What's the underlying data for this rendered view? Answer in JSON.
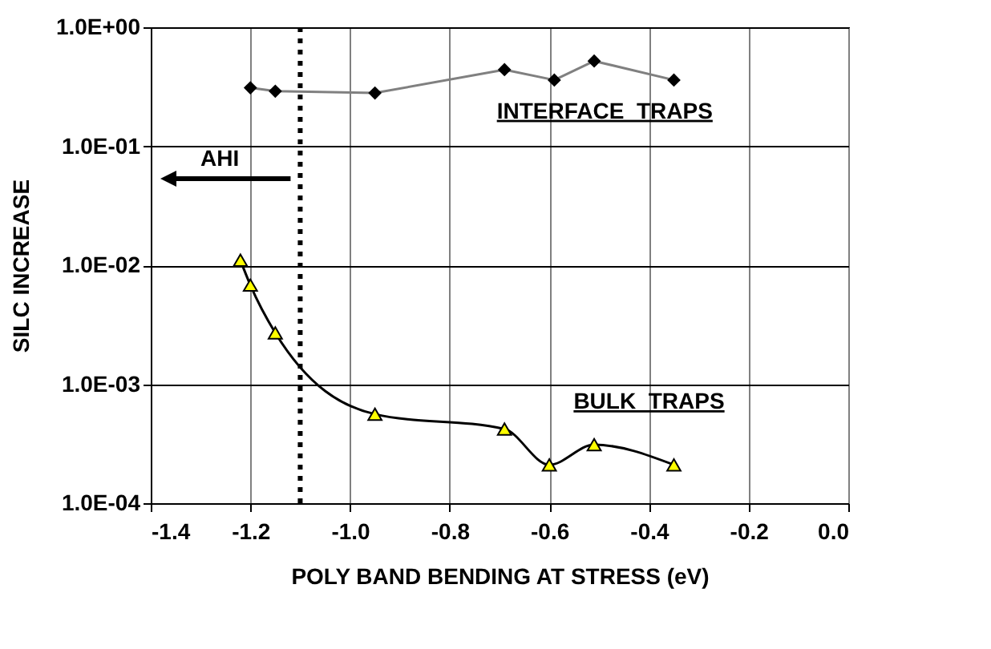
{
  "chart_data": {
    "type": "line",
    "xlabel": "POLY BAND BENDING AT STRESS    (eV)",
    "ylabel": "SILC INCREASE",
    "log": "y",
    "grid": true,
    "xlim": [
      -1.4,
      0.0
    ],
    "xticks": [
      {
        "value": -1.4,
        "label": "-1.4"
      },
      {
        "value": -1.2,
        "label": "-1.2"
      },
      {
        "value": -1.0,
        "label": "-1.0"
      },
      {
        "value": -0.8,
        "label": "-0.8"
      },
      {
        "value": -0.6,
        "label": "-0.6"
      },
      {
        "value": -0.4,
        "label": "-0.4"
      },
      {
        "value": -0.2,
        "label": "-0.2"
      },
      {
        "value": 0.0,
        "label": "0.0"
      }
    ],
    "ylim": [
      0.0001,
      1
    ],
    "yticks": [
      {
        "value": 0.0001,
        "label": "1.0E-04"
      },
      {
        "value": 0.001,
        "label": "1.0E-03"
      },
      {
        "value": 0.01,
        "label": "1.0E-02"
      },
      {
        "value": 0.1,
        "label": "1.0E-01"
      },
      {
        "value": 1,
        "label": "1.0E+00"
      }
    ],
    "series": [
      {
        "color": "#000000",
        "marker": "diamond",
        "x": [
          -1.2,
          -1.15,
          -0.95,
          -0.69,
          -0.59,
          -0.51,
          -0.35
        ],
        "values": [
          0.31,
          0.29,
          0.28,
          0.44,
          0.36,
          0.52,
          0.36
        ]
      },
      {
        "color": "#ffff00",
        "marker": "triangle",
        "x": [
          -1.22,
          -1.2,
          -1.15,
          -0.95,
          -0.69,
          -0.6,
          -0.51,
          -0.35
        ],
        "values": [
          0.011,
          0.0068,
          0.0027,
          0.00056,
          0.00042,
          0.00021,
          0.00031,
          0.00021
        ]
      }
    ],
    "ref_lines": [
      {
        "axis": "x",
        "value": -1.1,
        "color": "#000000",
        "line_style": "dotted"
      }
    ],
    "annotations": [
      "INTERFACE  TRAPS",
      "BULK  TRAPS",
      "AHI"
    ]
  }
}
